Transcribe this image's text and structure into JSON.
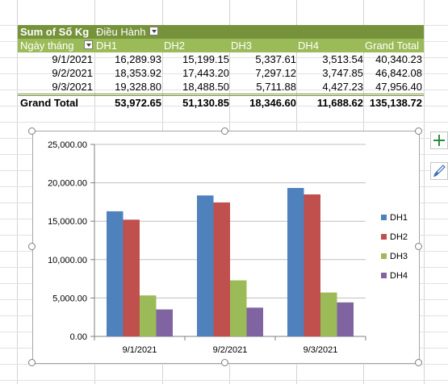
{
  "pivot": {
    "title": "Sum of Số Kg",
    "column_field": "Điều Hành",
    "row_field": "Ngày tháng",
    "columns": [
      "DH1",
      "DH2",
      "DH3",
      "DH4",
      "Grand Total"
    ],
    "rows": [
      {
        "label": "9/1/2021",
        "values": [
          "16,289.93",
          "15,199.15",
          "5,337.61",
          "3,513.54",
          "40,340.23"
        ]
      },
      {
        "label": "9/2/2021",
        "values": [
          "18,353.92",
          "17,443.20",
          "7,297.12",
          "3,747.85",
          "46,842.08"
        ]
      },
      {
        "label": "9/3/2021",
        "values": [
          "19,328.80",
          "18,488.50",
          "5,711.88",
          "4,427.23",
          "47,956.40"
        ]
      }
    ],
    "total": {
      "label": "Grand Total",
      "values": [
        "53,972.65",
        "51,130.85",
        "18,346.60",
        "11,688.62",
        "135,138.72"
      ]
    }
  },
  "chart_data": {
    "type": "bar",
    "categories": [
      "9/1/2021",
      "9/2/2021",
      "9/3/2021"
    ],
    "series": [
      {
        "name": "DH1",
        "color": "#4f81bd",
        "values": [
          16289.93,
          18353.92,
          19328.8
        ]
      },
      {
        "name": "DH2",
        "color": "#c0504d",
        "values": [
          15199.15,
          17443.2,
          18488.5
        ]
      },
      {
        "name": "DH3",
        "color": "#9bbb59",
        "values": [
          5337.61,
          7297.12,
          5711.88
        ]
      },
      {
        "name": "DH4",
        "color": "#8064a2",
        "values": [
          3513.54,
          3747.85,
          4427.23
        ]
      }
    ],
    "y_ticks": [
      "0.00",
      "5,000.00",
      "10,000.00",
      "15,000.00",
      "20,000.00",
      "25,000.00"
    ],
    "ylim": [
      0,
      25000
    ],
    "grid": true,
    "legend": "right"
  },
  "side_buttons": {
    "add_icon": "plus-icon",
    "style_icon": "paintbrush-icon"
  }
}
